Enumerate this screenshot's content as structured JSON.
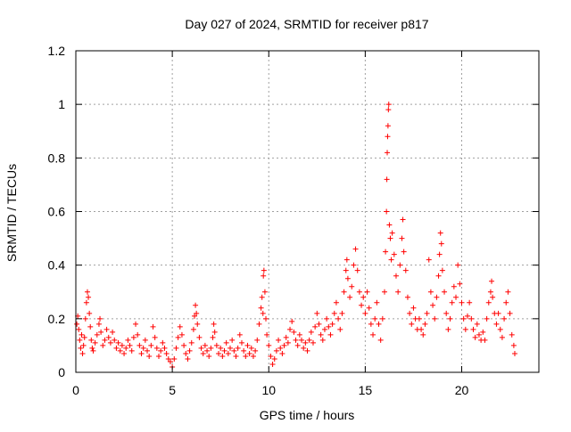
{
  "chart_data": {
    "type": "scatter",
    "title": "Day 027 of 2024, SRMTID for receiver p817",
    "xlabel": "GPS time / hours",
    "ylabel": "SRMTID / TECUs",
    "xlim": [
      0,
      24
    ],
    "ylim": [
      0,
      1.2
    ],
    "xticks": [
      0,
      5,
      10,
      15,
      20
    ],
    "xtick_labels": [
      "0",
      "5",
      "10",
      "15",
      "20"
    ],
    "yticks": [
      0,
      0.2,
      0.4,
      0.6,
      0.8,
      1.0,
      1.2
    ],
    "ytick_labels": [
      "0",
      "0.2",
      "0.4",
      "0.6",
      "0.8",
      "1",
      "1.2"
    ],
    "grid": true,
    "marker": "+",
    "color": "#ff0000",
    "series": [
      {
        "name": "SRMTID",
        "points": [
          [
            0.05,
            0.18
          ],
          [
            0.1,
            0.21
          ],
          [
            0.15,
            0.16
          ],
          [
            0.2,
            0.12
          ],
          [
            0.25,
            0.09
          ],
          [
            0.3,
            0.14
          ],
          [
            0.35,
            0.07
          ],
          [
            0.4,
            0.1
          ],
          [
            0.45,
            0.13
          ],
          [
            0.5,
            0.2
          ],
          [
            0.55,
            0.26
          ],
          [
            0.6,
            0.3
          ],
          [
            0.65,
            0.28
          ],
          [
            0.7,
            0.22
          ],
          [
            0.75,
            0.17
          ],
          [
            0.8,
            0.12
          ],
          [
            0.85,
            0.09
          ],
          [
            0.9,
            0.08
          ],
          [
            1.0,
            0.11
          ],
          [
            1.1,
            0.14
          ],
          [
            1.2,
            0.18
          ],
          [
            1.25,
            0.2
          ],
          [
            1.3,
            0.15
          ],
          [
            1.4,
            0.1
          ],
          [
            1.5,
            0.12
          ],
          [
            1.6,
            0.16
          ],
          [
            1.7,
            0.13
          ],
          [
            1.8,
            0.11
          ],
          [
            1.9,
            0.15
          ],
          [
            2.0,
            0.12
          ],
          [
            2.1,
            0.09
          ],
          [
            2.2,
            0.11
          ],
          [
            2.3,
            0.08
          ],
          [
            2.4,
            0.1
          ],
          [
            2.5,
            0.07
          ],
          [
            2.6,
            0.09
          ],
          [
            2.7,
            0.12
          ],
          [
            2.8,
            0.1
          ],
          [
            2.9,
            0.08
          ],
          [
            3.0,
            0.13
          ],
          [
            3.1,
            0.18
          ],
          [
            3.2,
            0.14
          ],
          [
            3.3,
            0.1
          ],
          [
            3.4,
            0.07
          ],
          [
            3.5,
            0.09
          ],
          [
            3.6,
            0.12
          ],
          [
            3.7,
            0.08
          ],
          [
            3.8,
            0.06
          ],
          [
            3.9,
            0.1
          ],
          [
            4.0,
            0.17
          ],
          [
            4.1,
            0.13
          ],
          [
            4.2,
            0.09
          ],
          [
            4.3,
            0.06
          ],
          [
            4.4,
            0.08
          ],
          [
            4.5,
            0.11
          ],
          [
            4.6,
            0.09
          ],
          [
            4.7,
            0.07
          ],
          [
            4.8,
            0.05
          ],
          [
            4.9,
            0.04
          ],
          [
            5.0,
            0.02
          ],
          [
            5.1,
            0.05
          ],
          [
            5.2,
            0.09
          ],
          [
            5.3,
            0.13
          ],
          [
            5.4,
            0.17
          ],
          [
            5.5,
            0.14
          ],
          [
            5.6,
            0.1
          ],
          [
            5.7,
            0.07
          ],
          [
            5.8,
            0.05
          ],
          [
            5.9,
            0.08
          ],
          [
            6.0,
            0.11
          ],
          [
            6.1,
            0.16
          ],
          [
            6.15,
            0.21
          ],
          [
            6.2,
            0.25
          ],
          [
            6.25,
            0.22
          ],
          [
            6.3,
            0.18
          ],
          [
            6.4,
            0.13
          ],
          [
            6.5,
            0.09
          ],
          [
            6.6,
            0.07
          ],
          [
            6.7,
            0.1
          ],
          [
            6.8,
            0.08
          ],
          [
            6.9,
            0.06
          ],
          [
            7.0,
            0.09
          ],
          [
            7.1,
            0.13
          ],
          [
            7.15,
            0.18
          ],
          [
            7.2,
            0.15
          ],
          [
            7.3,
            0.1
          ],
          [
            7.4,
            0.07
          ],
          [
            7.5,
            0.09
          ],
          [
            7.6,
            0.06
          ],
          [
            7.7,
            0.08
          ],
          [
            7.8,
            0.11
          ],
          [
            7.9,
            0.07
          ],
          [
            8.0,
            0.09
          ],
          [
            8.1,
            0.12
          ],
          [
            8.2,
            0.08
          ],
          [
            8.3,
            0.06
          ],
          [
            8.4,
            0.09
          ],
          [
            8.5,
            0.14
          ],
          [
            8.6,
            0.11
          ],
          [
            8.7,
            0.08
          ],
          [
            8.8,
            0.06
          ],
          [
            8.9,
            0.1
          ],
          [
            9.0,
            0.07
          ],
          [
            9.1,
            0.09
          ],
          [
            9.2,
            0.06
          ],
          [
            9.3,
            0.08
          ],
          [
            9.4,
            0.12
          ],
          [
            9.5,
            0.18
          ],
          [
            9.6,
            0.24
          ],
          [
            9.65,
            0.28
          ],
          [
            9.7,
            0.22
          ],
          [
            9.72,
            0.36
          ],
          [
            9.75,
            0.38
          ],
          [
            9.8,
            0.3
          ],
          [
            9.85,
            0.2
          ],
          [
            9.9,
            0.14
          ],
          [
            10.0,
            0.1
          ],
          [
            10.1,
            0.06
          ],
          [
            10.2,
            0.03
          ],
          [
            10.3,
            0.05
          ],
          [
            10.4,
            0.08
          ],
          [
            10.5,
            0.12
          ],
          [
            10.6,
            0.09
          ],
          [
            10.7,
            0.07
          ],
          [
            10.8,
            0.1
          ],
          [
            10.9,
            0.13
          ],
          [
            11.0,
            0.11
          ],
          [
            11.1,
            0.16
          ],
          [
            11.2,
            0.19
          ],
          [
            11.3,
            0.15
          ],
          [
            11.4,
            0.12
          ],
          [
            11.5,
            0.1
          ],
          [
            11.6,
            0.14
          ],
          [
            11.7,
            0.12
          ],
          [
            11.8,
            0.09
          ],
          [
            11.9,
            0.11
          ],
          [
            12.0,
            0.08
          ],
          [
            12.1,
            0.12
          ],
          [
            12.2,
            0.15
          ],
          [
            12.3,
            0.11
          ],
          [
            12.4,
            0.17
          ],
          [
            12.5,
            0.22
          ],
          [
            12.6,
            0.18
          ],
          [
            12.7,
            0.14
          ],
          [
            12.8,
            0.12
          ],
          [
            12.9,
            0.16
          ],
          [
            13.0,
            0.2
          ],
          [
            13.1,
            0.17
          ],
          [
            13.2,
            0.14
          ],
          [
            13.3,
            0.18
          ],
          [
            13.4,
            0.22
          ],
          [
            13.5,
            0.26
          ],
          [
            13.6,
            0.2
          ],
          [
            13.7,
            0.16
          ],
          [
            13.8,
            0.22
          ],
          [
            13.9,
            0.3
          ],
          [
            14.0,
            0.38
          ],
          [
            14.05,
            0.42
          ],
          [
            14.1,
            0.35
          ],
          [
            14.2,
            0.28
          ],
          [
            14.3,
            0.32
          ],
          [
            14.4,
            0.4
          ],
          [
            14.5,
            0.46
          ],
          [
            14.6,
            0.38
          ],
          [
            14.7,
            0.3
          ],
          [
            14.8,
            0.25
          ],
          [
            14.9,
            0.28
          ],
          [
            15.0,
            0.22
          ],
          [
            15.1,
            0.3
          ],
          [
            15.2,
            0.24
          ],
          [
            15.3,
            0.18
          ],
          [
            15.4,
            0.14
          ],
          [
            15.5,
            0.2
          ],
          [
            15.6,
            0.26
          ],
          [
            15.7,
            0.18
          ],
          [
            15.8,
            0.12
          ],
          [
            15.9,
            0.2
          ],
          [
            16.0,
            0.3
          ],
          [
            16.05,
            0.45
          ],
          [
            16.1,
            0.6
          ],
          [
            16.12,
            0.72
          ],
          [
            16.14,
            0.82
          ],
          [
            16.16,
            0.88
          ],
          [
            16.18,
            0.92
          ],
          [
            16.2,
            0.98
          ],
          [
            16.22,
            1.0
          ],
          [
            16.25,
            0.55
          ],
          [
            16.3,
            0.5
          ],
          [
            16.35,
            0.42
          ],
          [
            16.4,
            0.52
          ],
          [
            16.5,
            0.44
          ],
          [
            16.6,
            0.36
          ],
          [
            16.7,
            0.3
          ],
          [
            16.8,
            0.4
          ],
          [
            16.9,
            0.5
          ],
          [
            16.95,
            0.57
          ],
          [
            17.0,
            0.45
          ],
          [
            17.1,
            0.38
          ],
          [
            17.2,
            0.28
          ],
          [
            17.3,
            0.22
          ],
          [
            17.4,
            0.18
          ],
          [
            17.5,
            0.24
          ],
          [
            17.6,
            0.2
          ],
          [
            17.7,
            0.16
          ],
          [
            17.8,
            0.2
          ],
          [
            17.9,
            0.16
          ],
          [
            18.0,
            0.14
          ],
          [
            18.1,
            0.18
          ],
          [
            18.2,
            0.22
          ],
          [
            18.3,
            0.42
          ],
          [
            18.4,
            0.3
          ],
          [
            18.5,
            0.25
          ],
          [
            18.6,
            0.2
          ],
          [
            18.7,
            0.28
          ],
          [
            18.8,
            0.36
          ],
          [
            18.85,
            0.44
          ],
          [
            18.9,
            0.52
          ],
          [
            18.95,
            0.48
          ],
          [
            19.0,
            0.38
          ],
          [
            19.1,
            0.3
          ],
          [
            19.2,
            0.22
          ],
          [
            19.3,
            0.16
          ],
          [
            19.4,
            0.2
          ],
          [
            19.5,
            0.26
          ],
          [
            19.6,
            0.32
          ],
          [
            19.7,
            0.28
          ],
          [
            19.8,
            0.4
          ],
          [
            19.9,
            0.33
          ],
          [
            20.0,
            0.26
          ],
          [
            20.1,
            0.2
          ],
          [
            20.2,
            0.16
          ],
          [
            20.3,
            0.21
          ],
          [
            20.4,
            0.26
          ],
          [
            20.5,
            0.2
          ],
          [
            20.6,
            0.16
          ],
          [
            20.7,
            0.13
          ],
          [
            20.8,
            0.18
          ],
          [
            20.9,
            0.14
          ],
          [
            21.0,
            0.12
          ],
          [
            21.1,
            0.15
          ],
          [
            21.2,
            0.12
          ],
          [
            21.3,
            0.2
          ],
          [
            21.4,
            0.26
          ],
          [
            21.5,
            0.3
          ],
          [
            21.55,
            0.34
          ],
          [
            21.6,
            0.28
          ],
          [
            21.7,
            0.22
          ],
          [
            21.8,
            0.18
          ],
          [
            21.9,
            0.22
          ],
          [
            22.0,
            0.16
          ],
          [
            22.1,
            0.13
          ],
          [
            22.2,
            0.2
          ],
          [
            22.3,
            0.26
          ],
          [
            22.4,
            0.3
          ],
          [
            22.5,
            0.22
          ],
          [
            22.6,
            0.14
          ],
          [
            22.7,
            0.1
          ],
          [
            22.75,
            0.07
          ]
        ]
      }
    ]
  }
}
